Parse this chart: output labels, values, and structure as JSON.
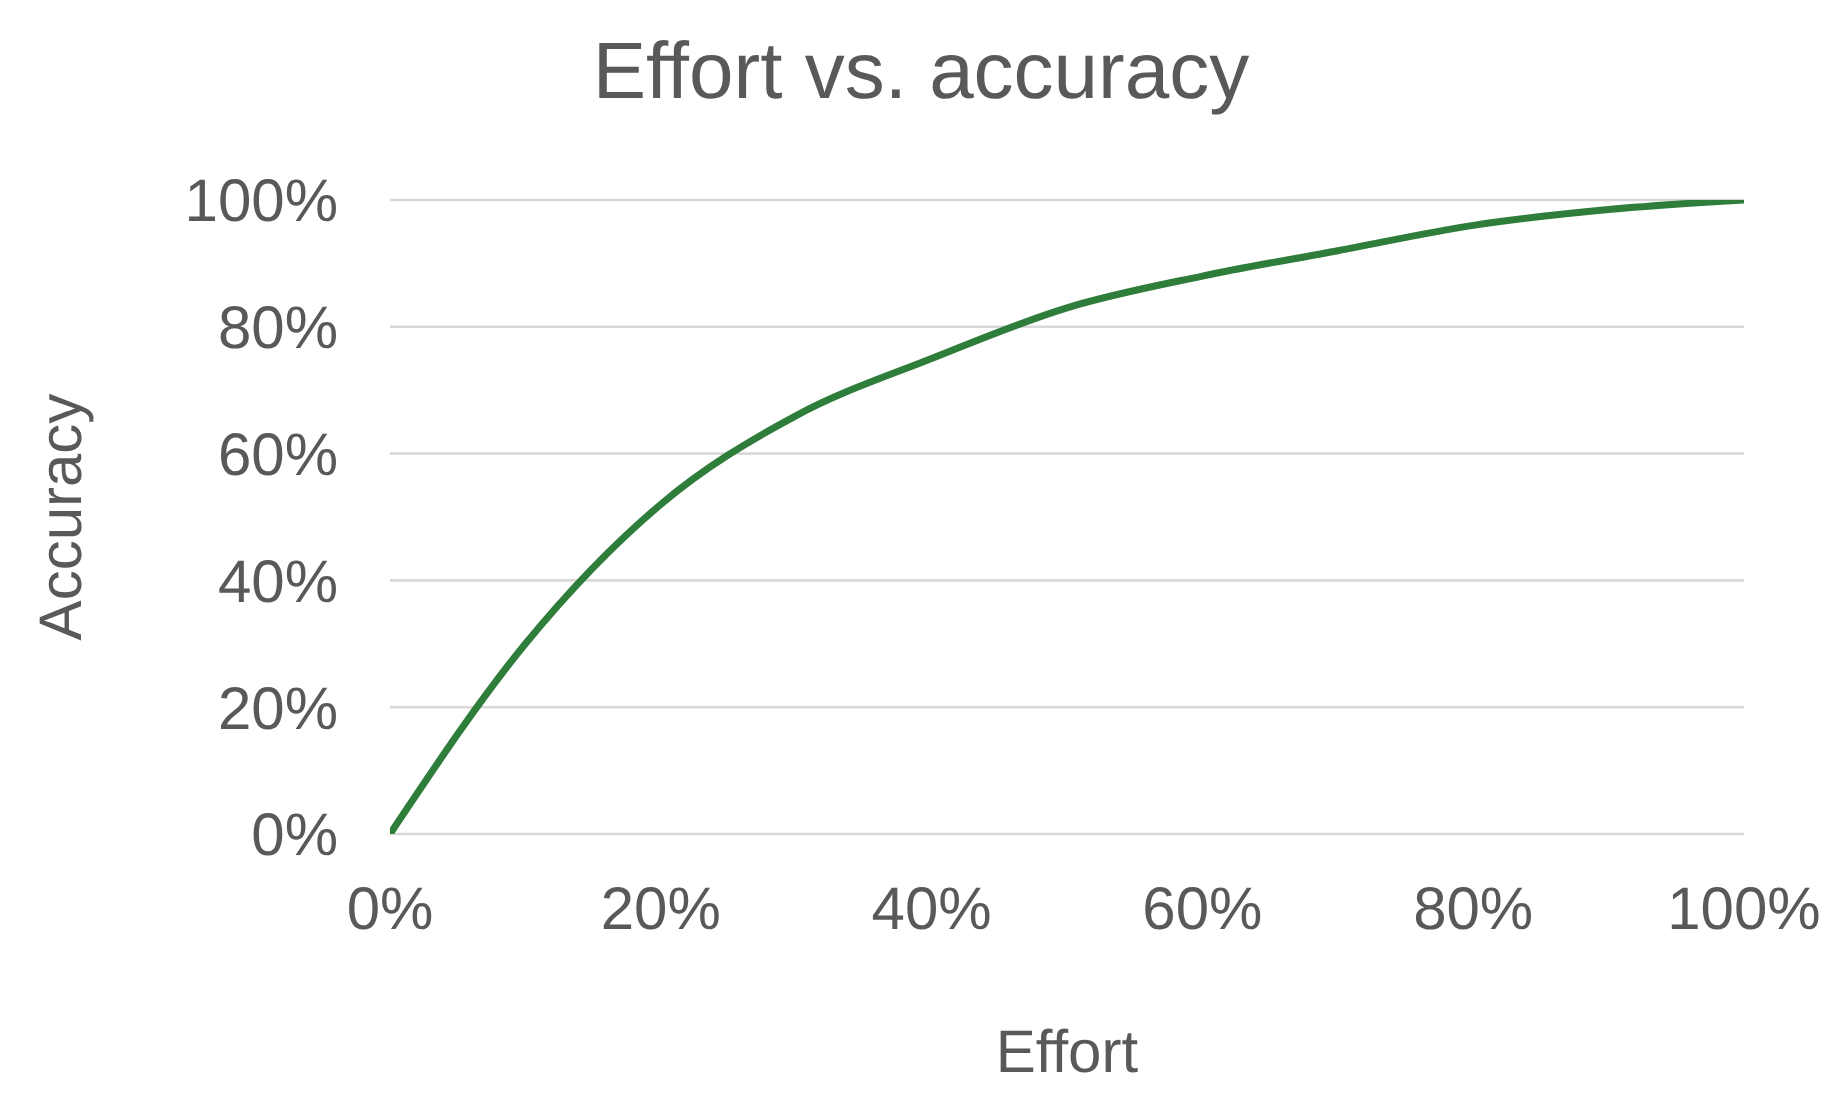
{
  "chart_data": {
    "type": "line",
    "title": "Effort vs. accuracy",
    "xlabel": "Effort",
    "ylabel": "Accuracy",
    "x": [
      0,
      10,
      20,
      30,
      40,
      50,
      60,
      70,
      80,
      90,
      100
    ],
    "series": [
      {
        "color": "#2e7d3a",
        "values": [
          0,
          30,
          52,
          66,
          75,
          83,
          88,
          92,
          96,
          98.5,
          100
        ]
      }
    ],
    "xlim": [
      0,
      100
    ],
    "ylim": [
      0,
      100
    ],
    "xticks": [
      {
        "value": 0,
        "label": "0%"
      },
      {
        "value": 20,
        "label": "20%"
      },
      {
        "value": 40,
        "label": "40%"
      },
      {
        "value": 60,
        "label": "60%"
      },
      {
        "value": 80,
        "label": "80%"
      },
      {
        "value": 100,
        "label": "100%"
      }
    ],
    "yticks": [
      {
        "value": 0,
        "label": "0%"
      },
      {
        "value": 20,
        "label": "20%"
      },
      {
        "value": 40,
        "label": "40%"
      },
      {
        "value": 60,
        "label": "60%"
      },
      {
        "value": 80,
        "label": "80%"
      },
      {
        "value": 100,
        "label": "100%"
      }
    ],
    "grid": "y",
    "marker": "none",
    "line_style": "solid"
  }
}
